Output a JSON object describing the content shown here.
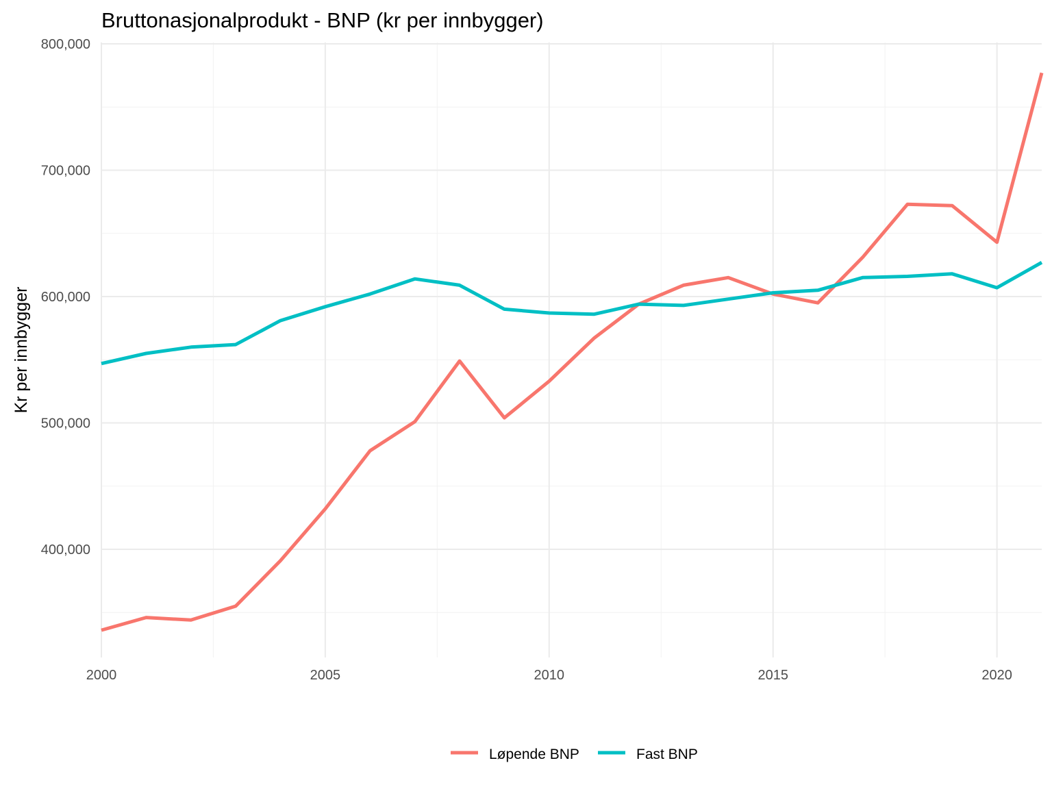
{
  "chart_data": {
    "type": "line",
    "title": "Bruttonasjonalprodukt - BNP (kr per innbygger)",
    "xlabel": "",
    "ylabel": "Kr per innbygger",
    "x": [
      2000,
      2001,
      2002,
      2003,
      2004,
      2005,
      2006,
      2007,
      2008,
      2009,
      2010,
      2011,
      2012,
      2013,
      2014,
      2015,
      2016,
      2017,
      2018,
      2019,
      2020,
      2021
    ],
    "xlim": [
      2000,
      2021
    ],
    "ylim": [
      315000,
      800000
    ],
    "x_ticks": [
      2000,
      2005,
      2010,
      2015,
      2020
    ],
    "x_tick_labels": [
      "2000",
      "2005",
      "2010",
      "2015",
      "2020"
    ],
    "y_ticks": [
      400000,
      500000,
      600000,
      700000,
      800000
    ],
    "y_tick_labels": [
      "400,000",
      "500,000",
      "600,000",
      "700,000",
      "800,000"
    ],
    "series": [
      {
        "name": "Løpende BNP",
        "color": "#F8766D",
        "values": [
          336000,
          346000,
          344000,
          355000,
          391000,
          432000,
          478000,
          501000,
          549000,
          504000,
          533000,
          567000,
          594000,
          609000,
          615000,
          602000,
          595000,
          631000,
          673000,
          672000,
          643000,
          777000
        ]
      },
      {
        "name": "Fast BNP",
        "color": "#00BFC4",
        "values": [
          547000,
          555000,
          560000,
          562000,
          581000,
          592000,
          602000,
          614000,
          609000,
          590000,
          587000,
          586000,
          594000,
          593000,
          598000,
          603000,
          605000,
          615000,
          616000,
          618000,
          607000,
          627000
        ]
      }
    ],
    "grid": true,
    "legend_position": "bottom"
  }
}
